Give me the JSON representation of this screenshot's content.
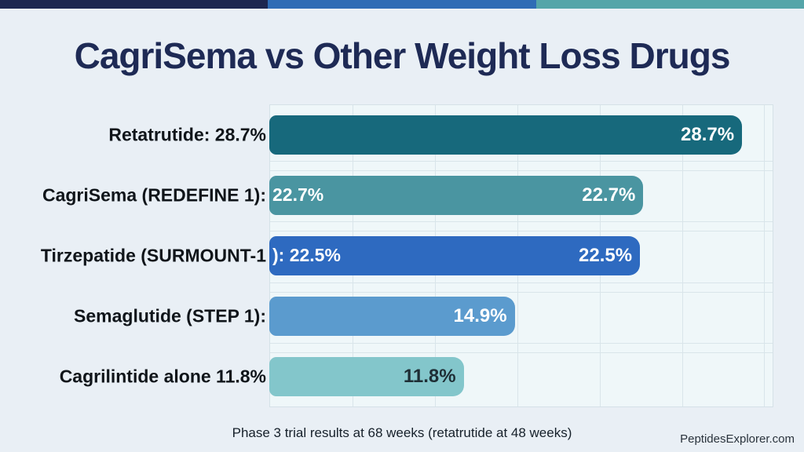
{
  "header": {
    "title": "CagriSema vs Other Weight Loss Drugs",
    "stripe_colors": [
      "#1d2750",
      "#2f6cb5",
      "#55a5a9"
    ]
  },
  "chart_data": {
    "type": "bar",
    "orientation": "horizontal",
    "title": "CagriSema vs Other Weight Loss Drugs",
    "categories": [
      "Retatrutide",
      "CagriSema (REDEFINE 1)",
      "Tirzepatide (SURMOUNT-1)",
      "Semaglutide (STEP 1)",
      "Cagrilintide alone"
    ],
    "values": [
      28.7,
      22.7,
      22.5,
      14.9,
      11.8
    ],
    "value_labels": [
      "28.7%",
      "22.7%",
      "22.5%",
      "14.9%",
      "11.8%"
    ],
    "xlim": [
      0,
      30.6
    ],
    "gridlines_pct": [
      5,
      10,
      15,
      20,
      25,
      30
    ],
    "grid": true,
    "legend": false,
    "plot_background": "#eff7f9",
    "bars": [
      {
        "label_outside": "Retatrutide: 28.7%",
        "label_in_bar_left": "",
        "value": 28.7,
        "value_label": "28.7%",
        "color": "#17697c",
        "value_label_color": "#ffffff"
      },
      {
        "label_outside": "CagriSema (REDEFINE 1):",
        "label_in_bar_left": "22.7%",
        "value": 22.7,
        "value_label": "22.7%",
        "color": "#4a95a1",
        "value_label_color": "#ffffff"
      },
      {
        "label_outside": "Tirzepatide (SURMOUNT-1",
        "label_in_bar_left": "): 22.5%",
        "value": 22.5,
        "value_label": "22.5%",
        "color": "#2e6ac0",
        "value_label_color": "#ffffff"
      },
      {
        "label_outside": "Semaglutide (STEP 1):",
        "label_in_bar_left": "",
        "value": 14.9,
        "value_label": "14.9%",
        "color": "#5b9bce",
        "value_label_color": "#ffffff"
      },
      {
        "label_outside": "Cagrilintide alone 11.8%",
        "label_in_bar_left": "",
        "value": 11.8,
        "value_label": "11.8%",
        "color": "#83c6cb",
        "value_label_color": "#1e2e35"
      }
    ]
  },
  "footer": {
    "note": "Phase 3 trial results at 68 weeks (retatrutide at 48 weeks)",
    "brand": "PeptidesExplorer.com"
  }
}
